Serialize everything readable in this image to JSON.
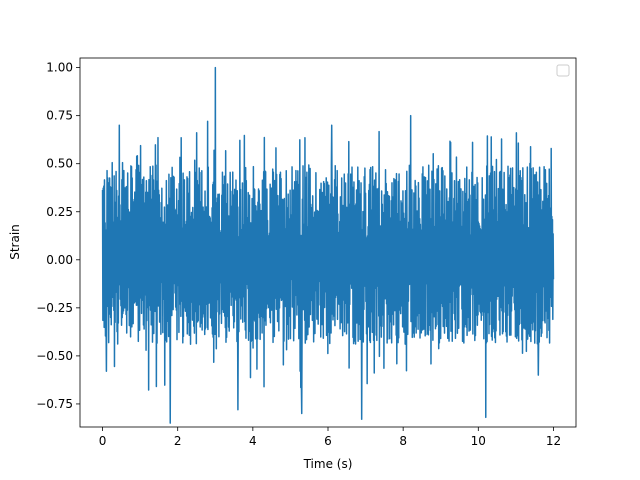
{
  "chart_data": {
    "type": "line",
    "title": "",
    "xlabel": "Time (s)",
    "ylabel": "Strain",
    "xlim": [
      -0.6,
      12.6
    ],
    "ylim": [
      -0.87,
      1.05
    ],
    "x_ticks": [
      0,
      2,
      4,
      6,
      8,
      10,
      12
    ],
    "x_tick_labels": [
      "0",
      "2",
      "4",
      "6",
      "8",
      "10",
      "12"
    ],
    "y_ticks": [
      -0.75,
      -0.5,
      -0.25,
      0.0,
      0.25,
      0.5,
      0.75,
      1.0
    ],
    "y_tick_labels": [
      "−0.75",
      "−0.50",
      "−0.25",
      "0.00",
      "0.25",
      "0.50",
      "0.75",
      "1.00"
    ],
    "grid": false,
    "legend": {
      "placement": "top-right",
      "entries": []
    },
    "series": [
      {
        "color": "#1f77b4",
        "x_range": [
          0,
          12
        ],
        "band": {
          "upper": 0.45,
          "lower": -0.4
        },
        "peaks": [
          {
            "x": 3.0,
            "y": 1.0
          },
          {
            "x": 8.2,
            "y": 0.75
          },
          {
            "x": 0.45,
            "y": 0.7
          },
          {
            "x": 2.8,
            "y": 0.72
          },
          {
            "x": 6.1,
            "y": 0.7
          },
          {
            "x": 1.8,
            "y": -0.85
          },
          {
            "x": 6.9,
            "y": -0.83
          },
          {
            "x": 10.2,
            "y": -0.82
          },
          {
            "x": 5.3,
            "y": -0.8
          },
          {
            "x": 0.1,
            "y": -0.58
          },
          {
            "x": 3.6,
            "y": -0.78
          },
          {
            "x": 11.6,
            "y": -0.6
          }
        ]
      }
    ]
  }
}
